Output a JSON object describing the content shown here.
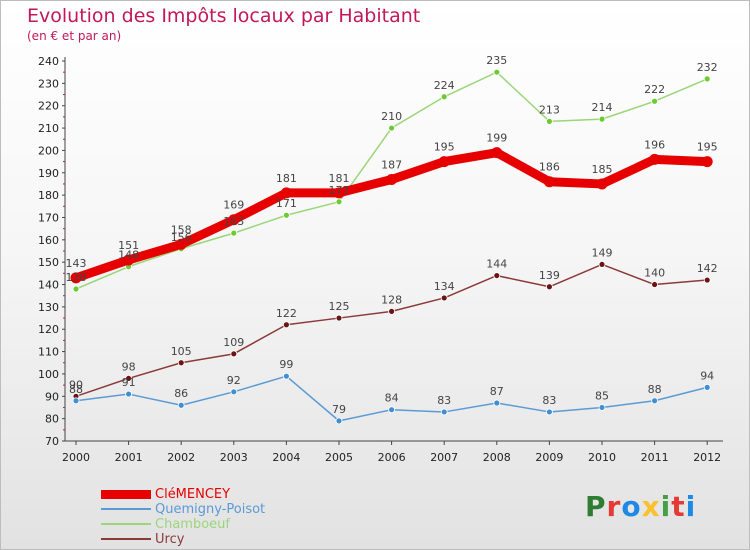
{
  "header": {
    "title": "Evolution des Impôts locaux par Habitant",
    "subtitle": "(en € et par an)"
  },
  "logo": {
    "text": "Proxiti",
    "colors": [
      "#2e7d32",
      "#e53935",
      "#1e88e5",
      "#fbc02d",
      "#43a047",
      "#e53935",
      "#1e88e5"
    ]
  },
  "chart_data": {
    "type": "line",
    "title": "Evolution des Impôts locaux par Habitant",
    "subtitle": "(en € et par an)",
    "xlabel": "",
    "ylabel": "",
    "x": [
      "2000",
      "2001",
      "2002",
      "2003",
      "2004",
      "2005",
      "2006",
      "2007",
      "2008",
      "2009",
      "2010",
      "2011",
      "2012"
    ],
    "ylim": [
      70,
      240
    ],
    "yticks": [
      70,
      80,
      90,
      100,
      110,
      120,
      130,
      140,
      150,
      160,
      170,
      180,
      190,
      200,
      210,
      220,
      230,
      240
    ],
    "grid": false,
    "legend_position": "bottom-left",
    "series": [
      {
        "name": "CléMENCEY",
        "color": "#e60000",
        "line_width": 9,
        "values": [
          143,
          151,
          158,
          169,
          181,
          181,
          187,
          195,
          199,
          186,
          185,
          196,
          195
        ]
      },
      {
        "name": "Quemigny-Poisot",
        "color": "#5b9bd5",
        "point_color": "#3f8fd2",
        "line_width": 1.5,
        "values": [
          88,
          91,
          86,
          92,
          99,
          79,
          84,
          83,
          87,
          83,
          85,
          88,
          94
        ]
      },
      {
        "name": "Chamboeuf",
        "color": "#9bd67a",
        "point_color": "#6ccb33",
        "line_width": 1.5,
        "values": [
          138,
          148,
          156,
          163,
          171,
          177,
          210,
          224,
          235,
          213,
          214,
          222,
          232
        ]
      },
      {
        "name": "Urcy",
        "color": "#8b3a3a",
        "point_color": "#6a1414",
        "line_width": 1.5,
        "values": [
          90,
          98,
          105,
          109,
          122,
          125,
          128,
          134,
          144,
          139,
          149,
          140,
          142
        ]
      }
    ]
  }
}
